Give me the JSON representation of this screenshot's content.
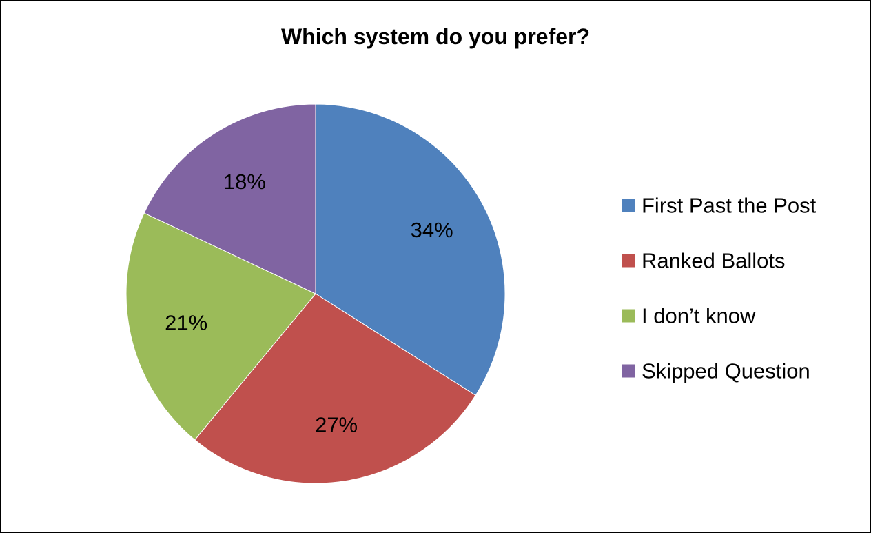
{
  "chart_data": {
    "type": "pie",
    "title": "Which system do you prefer?",
    "categories": [
      "First Past the Post",
      "Ranked Ballots",
      "I don’t know",
      "Skipped Question"
    ],
    "values": [
      34,
      27,
      21,
      18
    ],
    "data_labels": [
      "34%",
      "27%",
      "21%",
      "18%"
    ],
    "colors": [
      "#4F81BD",
      "#C0504D",
      "#9BBB59",
      "#8064A2"
    ],
    "start_angle": "12 o'clock",
    "direction": "clockwise",
    "legend_position": "right"
  }
}
